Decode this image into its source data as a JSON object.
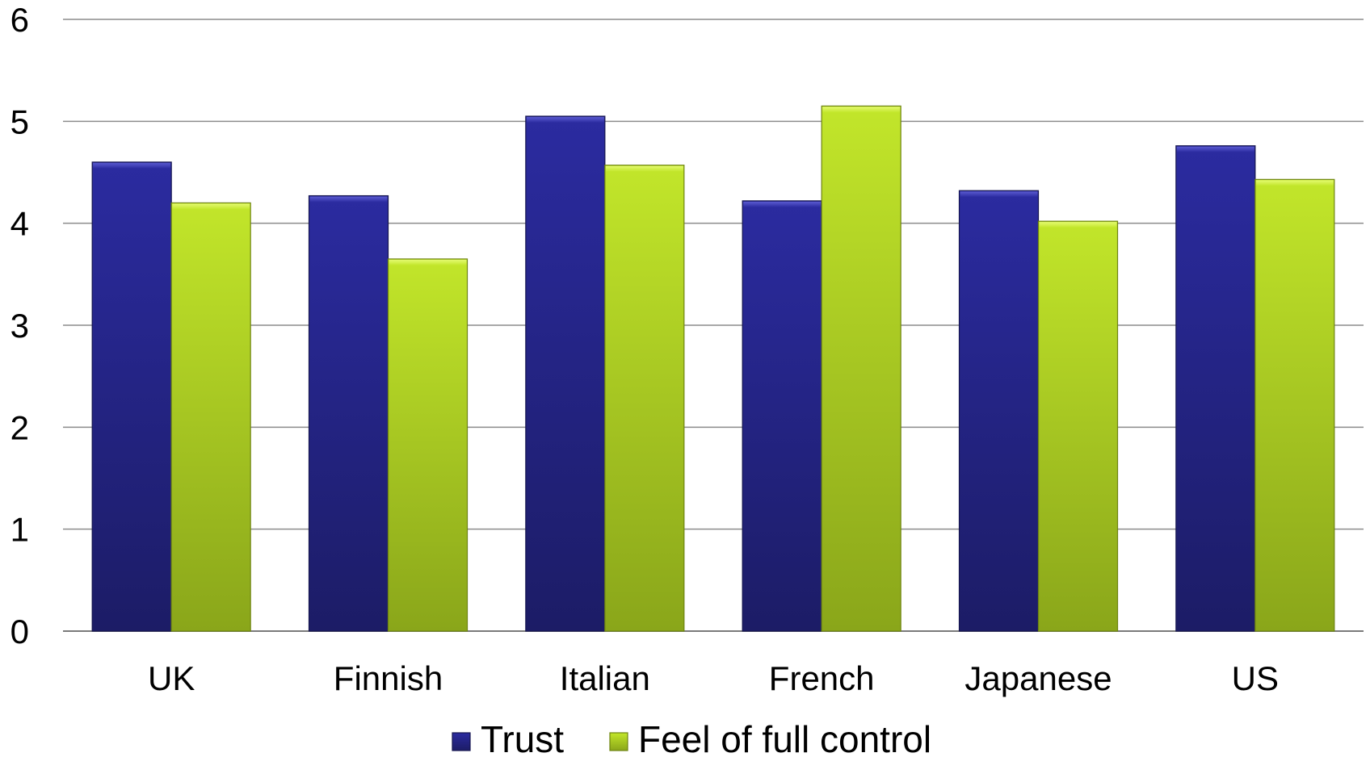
{
  "chart_data": {
    "type": "bar",
    "categories": [
      "UK",
      "Finnish",
      "Italian",
      "French",
      "Japanese",
      "US"
    ],
    "series": [
      {
        "name": "Trust",
        "values": [
          4.6,
          4.27,
          5.05,
          4.22,
          4.32,
          4.76
        ],
        "color": "#23238a"
      },
      {
        "name": "Feel of full control",
        "values": [
          4.2,
          3.65,
          4.57,
          5.15,
          4.02,
          4.43
        ],
        "color": "#a6c81e"
      }
    ],
    "yticks": [
      "0",
      "1",
      "2",
      "3",
      "4",
      "5",
      "6"
    ],
    "ylim": [
      0,
      6
    ],
    "grid": true,
    "legend_position": "bottom"
  }
}
